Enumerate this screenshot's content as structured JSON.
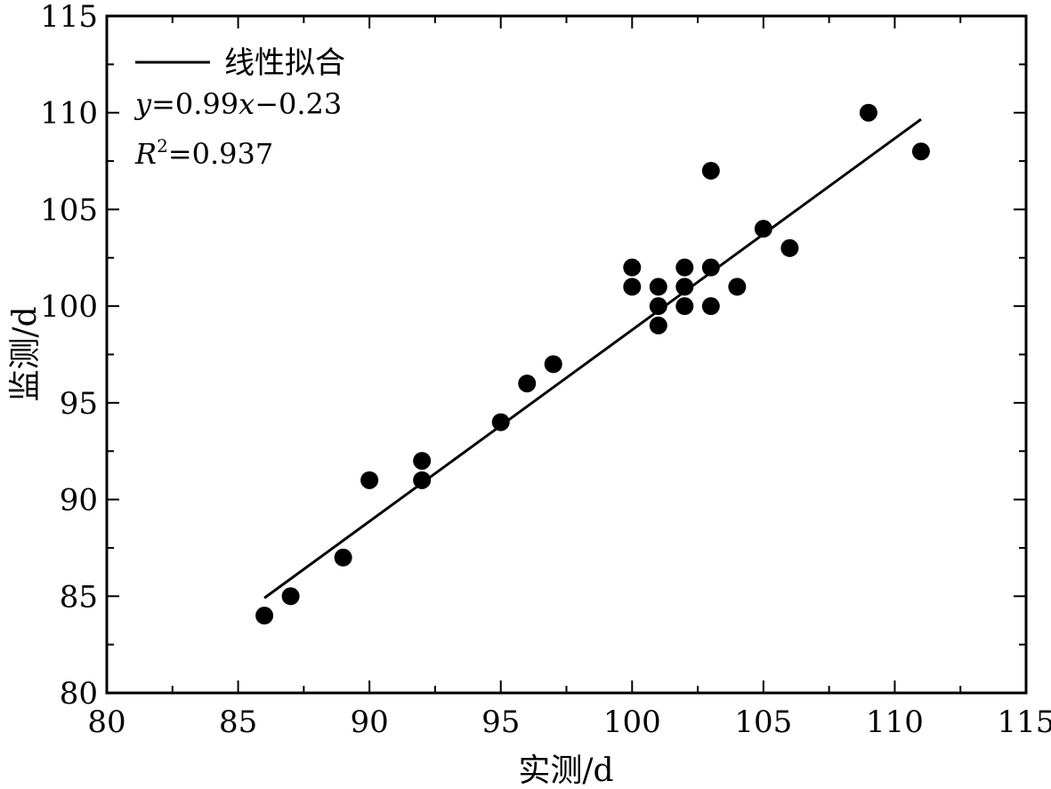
{
  "chart_data": {
    "type": "scatter",
    "xlabel": "实测/d",
    "ylabel": "监测/d",
    "xlim": [
      80,
      115
    ],
    "ylim": [
      80,
      115
    ],
    "xticks": [
      80,
      85,
      90,
      95,
      100,
      105,
      110,
      115
    ],
    "yticks": [
      80,
      85,
      90,
      95,
      100,
      105,
      110,
      115
    ],
    "grid": false,
    "legend": {
      "position": "top-left",
      "entry": "线性拟合"
    },
    "points": [
      [
        86,
        84
      ],
      [
        87,
        85
      ],
      [
        89,
        87
      ],
      [
        90,
        91
      ],
      [
        92,
        92
      ],
      [
        92,
        91
      ],
      [
        95,
        94
      ],
      [
        96,
        96
      ],
      [
        97,
        97
      ],
      [
        100,
        102
      ],
      [
        100,
        101
      ],
      [
        101,
        101
      ],
      [
        101,
        100
      ],
      [
        101,
        99
      ],
      [
        102,
        102
      ],
      [
        102,
        101
      ],
      [
        102,
        100
      ],
      [
        103,
        107
      ],
      [
        103,
        102
      ],
      [
        103,
        100
      ],
      [
        104,
        101
      ],
      [
        105,
        104
      ],
      [
        106,
        103
      ],
      [
        109,
        110
      ],
      [
        111,
        108
      ]
    ],
    "fit": {
      "slope": 0.99,
      "intercept": -0.23,
      "x_range": [
        86,
        111
      ]
    },
    "equation": {
      "y": "y",
      "eq": "=0.99",
      "x": "x",
      "rest": "−0.23"
    },
    "r2": {
      "R": "R",
      "sup": "2",
      "rest": "=0.937"
    }
  }
}
